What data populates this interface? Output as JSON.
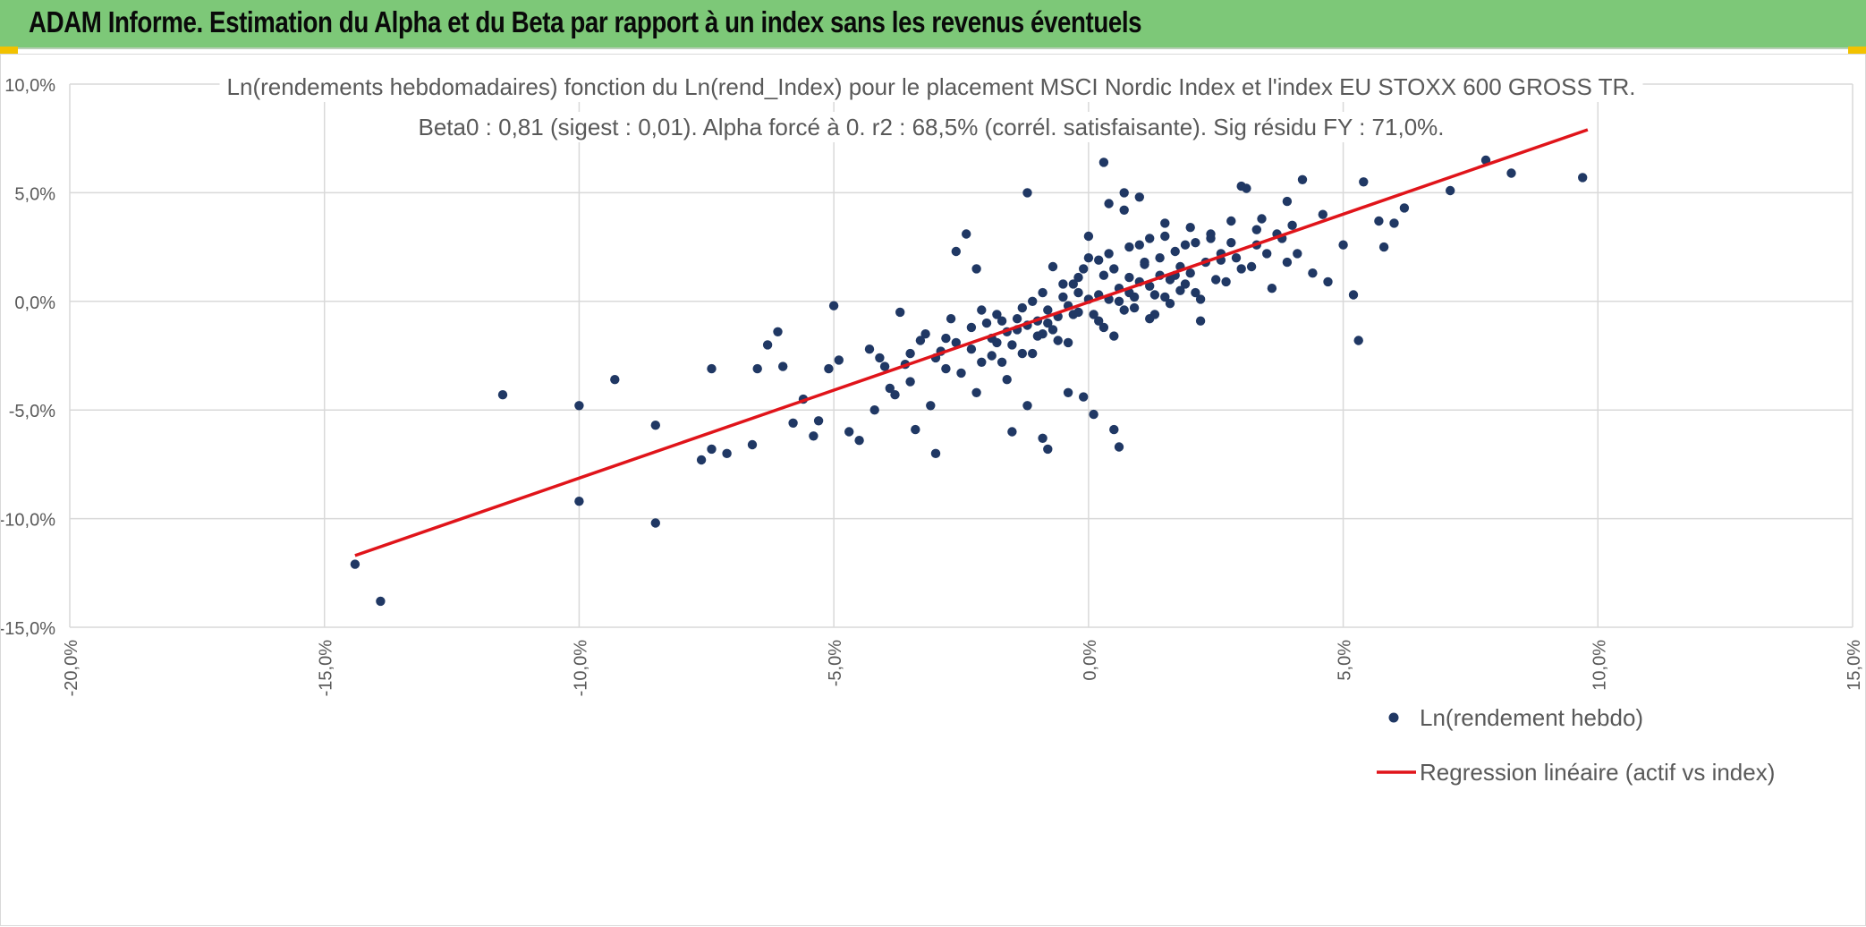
{
  "header": {
    "title": "ADAM Informe. Estimation du Alpha et du Beta par rapport à un index sans les revenus éventuels"
  },
  "colors": {
    "banner": "#7dc878",
    "points": "#203864",
    "regression": "#e0141a",
    "grid": "#d9d9d9"
  },
  "chart_data": {
    "type": "scatter",
    "title": "Ln(rendements hebdomadaires) fonction du Ln(rend_Index) pour le placement MSCI Nordic Index et l'index EU STOXX 600 GROSS TR.",
    "subtitle": "Beta0 : 0,81 (sigest : 0,01). Alpha forcé à 0. r2 : 68,5% (corrél. satisfaisante). Sig résidu FY : 71,0%.",
    "xlabel": "",
    "ylabel": "",
    "xlim": [
      -20,
      15
    ],
    "ylim": [
      -15,
      10
    ],
    "x_ticks": [
      -20,
      -15,
      -10,
      -5,
      0,
      5,
      10,
      15
    ],
    "y_ticks": [
      10,
      5,
      0,
      -5,
      -10,
      -15
    ],
    "x_tick_labels": [
      "-20,0%",
      "-15,0%",
      "-10,0%",
      "-5,0%",
      "0,0%",
      "5,0%",
      "10,0%",
      "15,0%"
    ],
    "y_tick_labels": [
      "10,0%",
      "5,0%",
      "0,0%",
      "-5,0%",
      "-10,0%",
      "-15,0%"
    ],
    "grid": true,
    "legend_position": "bottom-right",
    "series": [
      {
        "name": "Ln(rendement hebdo)",
        "kind": "scatter",
        "points": [
          [
            -14.4,
            -12.1
          ],
          [
            -13.9,
            -13.8
          ],
          [
            -11.5,
            -4.3
          ],
          [
            -10.0,
            -4.8
          ],
          [
            -10.0,
            -9.2
          ],
          [
            -9.3,
            -3.6
          ],
          [
            -8.5,
            -5.7
          ],
          [
            -8.5,
            -10.2
          ],
          [
            -7.6,
            -7.3
          ],
          [
            -7.4,
            -6.8
          ],
          [
            -7.4,
            -3.1
          ],
          [
            -7.1,
            -7.0
          ],
          [
            -6.6,
            -6.6
          ],
          [
            -6.5,
            -3.1
          ],
          [
            -6.3,
            -2.0
          ],
          [
            -6.1,
            -1.4
          ],
          [
            -6.0,
            -3.0
          ],
          [
            -5.8,
            -5.6
          ],
          [
            -5.6,
            -4.5
          ],
          [
            -5.4,
            -6.2
          ],
          [
            -5.3,
            -5.5
          ],
          [
            -5.1,
            -3.1
          ],
          [
            -5.0,
            -0.2
          ],
          [
            -4.9,
            -2.7
          ],
          [
            -4.7,
            -6.0
          ],
          [
            -4.5,
            -6.4
          ],
          [
            -4.3,
            -2.2
          ],
          [
            -4.2,
            -5.0
          ],
          [
            -4.1,
            -2.6
          ],
          [
            -3.9,
            -4.0
          ],
          [
            -3.8,
            -4.3
          ],
          [
            -3.7,
            -0.5
          ],
          [
            -3.6,
            -2.9
          ],
          [
            -3.5,
            -3.7
          ],
          [
            -3.4,
            -5.9
          ],
          [
            -3.3,
            -1.8
          ],
          [
            -3.1,
            -4.8
          ],
          [
            -3.0,
            -7.0
          ],
          [
            -2.9,
            -2.3
          ],
          [
            -2.8,
            -1.7
          ],
          [
            -2.6,
            2.3
          ],
          [
            -2.5,
            -3.3
          ],
          [
            -2.4,
            3.1
          ],
          [
            -2.3,
            -1.2
          ],
          [
            -2.2,
            1.5
          ],
          [
            -2.2,
            -4.2
          ],
          [
            -2.1,
            -2.8
          ],
          [
            -1.9,
            -2.5
          ],
          [
            -1.8,
            -1.9
          ],
          [
            -1.7,
            -0.9
          ],
          [
            -1.6,
            -3.6
          ],
          [
            -1.5,
            -6.0
          ],
          [
            -1.4,
            -1.3
          ],
          [
            -1.3,
            -0.3
          ],
          [
            -1.2,
            -4.8
          ],
          [
            -1.2,
            5.0
          ],
          [
            -1.1,
            -2.4
          ],
          [
            -1.0,
            -1.6
          ],
          [
            -0.9,
            0.4
          ],
          [
            -0.9,
            -6.3
          ],
          [
            -0.8,
            -6.8
          ],
          [
            -0.8,
            -1.0
          ],
          [
            -0.7,
            1.6
          ],
          [
            -0.6,
            -1.8
          ],
          [
            -0.5,
            0.8
          ],
          [
            -0.4,
            -4.2
          ],
          [
            -0.3,
            -0.6
          ],
          [
            -0.2,
            1.1
          ],
          [
            -0.1,
            -4.4
          ],
          [
            0.0,
            3.0
          ],
          [
            0.1,
            -5.2
          ],
          [
            0.2,
            1.9
          ],
          [
            0.3,
            -1.2
          ],
          [
            0.3,
            6.4
          ],
          [
            0.4,
            4.5
          ],
          [
            0.5,
            -5.9
          ],
          [
            0.6,
            -6.7
          ],
          [
            0.7,
            4.2
          ],
          [
            0.7,
            5.0
          ],
          [
            0.8,
            2.5
          ],
          [
            1.0,
            4.8
          ],
          [
            1.1,
            1.7
          ],
          [
            1.2,
            2.9
          ],
          [
            1.3,
            -0.6
          ],
          [
            1.5,
            3.6
          ],
          [
            1.7,
            1.2
          ],
          [
            1.9,
            2.6
          ],
          [
            2.1,
            0.4
          ],
          [
            2.2,
            -0.9
          ],
          [
            2.4,
            3.1
          ],
          [
            2.6,
            1.9
          ],
          [
            2.8,
            2.7
          ],
          [
            3.0,
            5.3
          ],
          [
            3.1,
            5.2
          ],
          [
            3.2,
            1.6
          ],
          [
            3.4,
            3.8
          ],
          [
            3.6,
            0.6
          ],
          [
            3.8,
            2.9
          ],
          [
            3.9,
            4.6
          ],
          [
            4.1,
            2.2
          ],
          [
            4.2,
            5.6
          ],
          [
            4.4,
            1.3
          ],
          [
            4.6,
            4.0
          ],
          [
            4.7,
            0.9
          ],
          [
            5.0,
            2.6
          ],
          [
            5.2,
            0.3
          ],
          [
            5.3,
            -1.8
          ],
          [
            5.4,
            5.5
          ],
          [
            5.7,
            3.7
          ],
          [
            5.8,
            2.5
          ],
          [
            6.0,
            3.6
          ],
          [
            6.2,
            4.3
          ],
          [
            7.1,
            5.1
          ],
          [
            7.8,
            6.5
          ],
          [
            8.3,
            5.9
          ],
          [
            9.7,
            5.7
          ],
          [
            -2.0,
            -1.0
          ],
          [
            -1.8,
            -0.6
          ],
          [
            -1.6,
            -1.4
          ],
          [
            -1.4,
            -0.8
          ],
          [
            -1.2,
            -1.1
          ],
          [
            -1.0,
            -0.9
          ],
          [
            -0.8,
            -0.4
          ],
          [
            -0.6,
            -0.7
          ],
          [
            -0.4,
            -0.2
          ],
          [
            -0.2,
            -0.5
          ],
          [
            0.0,
            0.1
          ],
          [
            0.2,
            0.3
          ],
          [
            0.4,
            0.1
          ],
          [
            0.6,
            0.6
          ],
          [
            0.8,
            0.4
          ],
          [
            1.0,
            0.9
          ],
          [
            1.2,
            0.7
          ],
          [
            1.4,
            1.2
          ],
          [
            1.6,
            1.0
          ],
          [
            1.8,
            1.6
          ],
          [
            2.0,
            1.3
          ],
          [
            -1.5,
            -2.0
          ],
          [
            -0.9,
            -1.5
          ],
          [
            -0.3,
            0.8
          ],
          [
            0.3,
            1.2
          ],
          [
            0.9,
            -0.3
          ],
          [
            1.5,
            0.2
          ],
          [
            2.3,
            1.8
          ],
          [
            2.6,
            2.2
          ],
          [
            -2.6,
            -1.9
          ],
          [
            -2.3,
            -2.2
          ],
          [
            -1.9,
            -1.7
          ],
          [
            0.1,
            -0.6
          ],
          [
            0.5,
            1.5
          ],
          [
            1.1,
            1.8
          ],
          [
            1.7,
            2.3
          ],
          [
            -0.5,
            0.2
          ],
          [
            -1.1,
            0.0
          ],
          [
            0.7,
            -0.4
          ],
          [
            1.3,
            0.3
          ],
          [
            1.9,
            0.8
          ],
          [
            2.5,
            1.0
          ],
          [
            2.9,
            2.0
          ],
          [
            3.3,
            2.6
          ],
          [
            -3.0,
            -2.6
          ],
          [
            -3.5,
            -2.4
          ],
          [
            -2.8,
            -3.1
          ],
          [
            -0.7,
            -1.3
          ],
          [
            0.2,
            -0.9
          ],
          [
            0.8,
            1.1
          ],
          [
            1.4,
            2.0
          ],
          [
            2.1,
            2.7
          ],
          [
            2.7,
            0.9
          ],
          [
            3.5,
            2.2
          ],
          [
            -1.3,
            -2.4
          ],
          [
            -0.1,
            1.5
          ],
          [
            0.4,
            2.2
          ],
          [
            1.0,
            2.6
          ],
          [
            1.6,
            -0.1
          ],
          [
            2.2,
            0.1
          ],
          [
            -2.1,
            -0.4
          ],
          [
            -1.7,
            -2.8
          ],
          [
            0.6,
            0.0
          ],
          [
            1.2,
            -0.8
          ],
          [
            -0.2,
            0.4
          ],
          [
            0.9,
            0.2
          ],
          [
            1.8,
            0.5
          ],
          [
            2.4,
            2.9
          ],
          [
            3.0,
            1.5
          ],
          [
            3.7,
            3.1
          ],
          [
            4.0,
            3.5
          ],
          [
            -4.0,
            -3.0
          ],
          [
            -3.2,
            -1.5
          ],
          [
            -2.7,
            -0.8
          ],
          [
            -0.4,
            -1.9
          ],
          [
            0.0,
            2.0
          ],
          [
            0.5,
            -1.6
          ],
          [
            1.5,
            3.0
          ],
          [
            2.0,
            3.4
          ],
          [
            2.8,
            3.7
          ],
          [
            3.3,
            3.3
          ],
          [
            3.9,
            1.8
          ]
        ]
      },
      {
        "name": "Regression linéaire (actif vs index)",
        "kind": "line",
        "points": [
          [
            -14.4,
            -11.7
          ],
          [
            9.8,
            7.9
          ]
        ]
      }
    ]
  }
}
